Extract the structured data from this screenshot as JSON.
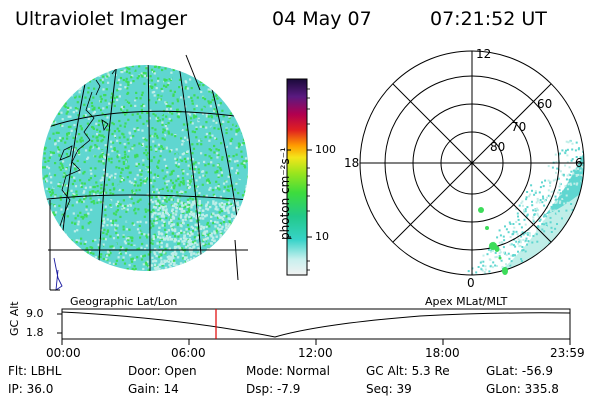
{
  "header": {
    "title": "Ultraviolet Imager",
    "date": "04 May 07",
    "time": "07:21:52 UT"
  },
  "colorbar": {
    "label": "photon cm⁻²s⁻¹",
    "ticks": [
      "100",
      "10"
    ],
    "scale": "log"
  },
  "left_panel": {
    "caption": "Geographic Lat/Lon"
  },
  "right_panel": {
    "caption": "Apex MLat/MLT",
    "mlt_labels": {
      "top": "12",
      "left": "18",
      "right": "6",
      "bottom": "0"
    },
    "lat_labels": [
      "60",
      "70",
      "80"
    ]
  },
  "timeline": {
    "ylabel": "GC Alt",
    "y_ticks": [
      "9.0",
      "1.8"
    ],
    "x_ticks": [
      "00:00",
      "06:00",
      "12:00",
      "18:00",
      "23:59"
    ],
    "marker_time": "07:21:52"
  },
  "info": {
    "flt": "Flt: LBHL",
    "ip": "IP: 36.0",
    "door": "Door: Open",
    "gain": "Gain: 14",
    "mode": "Mode: Normal",
    "dsp": "Dsp:   -7.9",
    "gcalt": "GC Alt: 5.3 Re",
    "seq": "Seq: 39",
    "glat": "GLat: -56.9",
    "glon": "GLon: 335.8"
  },
  "colors": {
    "speckle_green": "#3ddc5a",
    "speckle_cyan": "#5fd6d0",
    "speckle_pale": "#bfeee8",
    "marker": "#e00000"
  }
}
